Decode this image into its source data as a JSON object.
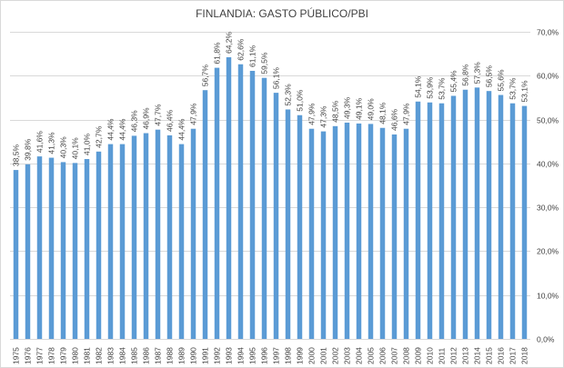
{
  "chart_data": {
    "type": "bar",
    "title": "FINLANDIA: GASTO PÚBLICO/PBI",
    "xlabel": "",
    "ylabel": "",
    "ylim": [
      0,
      70
    ],
    "y_axis_position": "right",
    "grid": true,
    "legend": "none",
    "bar_color": "#5b9bd5",
    "y_tick_values": [
      0,
      10,
      20,
      30,
      40,
      50,
      60,
      70
    ],
    "y_tick_labels": [
      "0,0%",
      "10,0%",
      "20,0%",
      "30,0%",
      "40,0%",
      "50,0%",
      "60,0%",
      "70,0%"
    ],
    "categories": [
      "1975",
      "1976",
      "1977",
      "1978",
      "1979",
      "1980",
      "1981",
      "1982",
      "1983",
      "1984",
      "1985",
      "1986",
      "1987",
      "1988",
      "1989",
      "1990",
      "1991",
      "1992",
      "1993",
      "1994",
      "1995",
      "1996",
      "1997",
      "1998",
      "1999",
      "2000",
      "2001",
      "2002",
      "2003",
      "2004",
      "2005",
      "2006",
      "2007",
      "2008",
      "2009",
      "2010",
      "2011",
      "2012",
      "2013",
      "2014",
      "2015",
      "2016",
      "2017",
      "2018"
    ],
    "values": [
      38.5,
      39.8,
      41.6,
      41.3,
      40.3,
      40.1,
      41.0,
      42.7,
      44.4,
      44.4,
      46.3,
      46.9,
      47.7,
      46.4,
      44.4,
      47.9,
      56.7,
      61.8,
      64.2,
      62.6,
      61.1,
      59.5,
      56.1,
      52.3,
      51.0,
      47.9,
      47.3,
      48.5,
      49.3,
      49.1,
      49.0,
      48.1,
      46.6,
      47.9,
      54.1,
      53.9,
      53.7,
      55.4,
      56.8,
      57.3,
      56.5,
      55.6,
      53.7,
      53.1
    ],
    "data_labels": [
      "38,5%",
      "39,8%",
      "41,6%",
      "41,3%",
      "40,3%",
      "40,1%",
      "41,0%",
      "42,7%",
      "44,4%",
      "44,4%",
      "46,3%",
      "46,9%",
      "47,7%",
      "46,4%",
      "44,4%",
      "47,9%",
      "56,7%",
      "61,8%",
      "64,2%",
      "62,6%",
      "61,1%",
      "59,5%",
      "56,1%",
      "52,3%",
      "51,0%",
      "47,9%",
      "47,3%",
      "48,5%",
      "49,3%",
      "49,1%",
      "49,0%",
      "48,1%",
      "46,6%",
      "47,9%",
      "54,1%",
      "53,9%",
      "53,7%",
      "55,4%",
      "56,8%",
      "57,3%",
      "56,5%",
      "55,6%",
      "53,7%",
      "53,1%"
    ]
  }
}
